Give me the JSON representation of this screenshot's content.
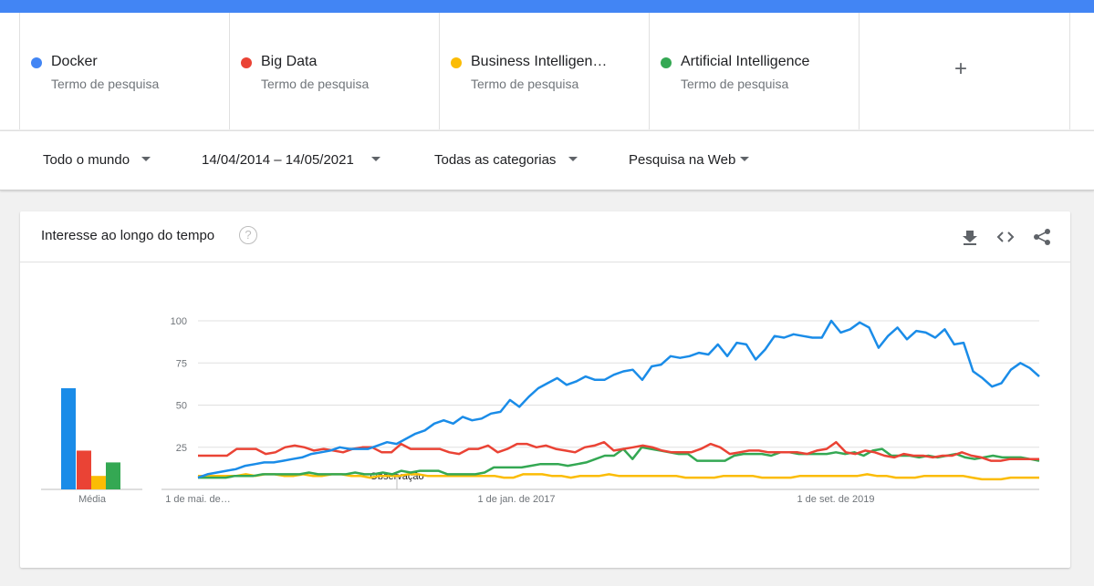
{
  "terms": [
    {
      "name": "Docker",
      "subtitle": "Termo de pesquisa",
      "color": "#4285f4"
    },
    {
      "name": "Big Data",
      "subtitle": "Termo de pesquisa",
      "color": "#ea4335"
    },
    {
      "name": "Business Intelligen…",
      "subtitle": "Termo de pesquisa",
      "color": "#fbbc04"
    },
    {
      "name": "Artificial Intelligence",
      "subtitle": "Termo de pesquisa",
      "color": "#34a853"
    }
  ],
  "add_term": {
    "label": "+",
    "icon": "plus-icon"
  },
  "filters": {
    "region": "Todo o mundo",
    "date_range": "14/04/2014 – 14/05/2021",
    "category": "Todas as categorias",
    "search_type": "Pesquisa na Web"
  },
  "card": {
    "title": "Interesse ao longo do tempo",
    "help_icon": "question-icon",
    "actions": [
      "download-icon",
      "embed-icon",
      "share-icon"
    ]
  },
  "chart_data": {
    "type": "line",
    "ylim": [
      0,
      100
    ],
    "y_ticks": [
      "100",
      "75",
      "50",
      "25"
    ],
    "x_tick_labels": [
      "1 de mai. de…",
      "1 de jan. de 2017",
      "1 de set. de 2019"
    ],
    "annotation": "Observação",
    "average_label": "Média",
    "averages": [
      {
        "name": "Docker",
        "value": 60,
        "color": "#1a8ce8"
      },
      {
        "name": "Big Data",
        "value": 23,
        "color": "#ea4335"
      },
      {
        "name": "Business Intelligen…",
        "value": 8,
        "color": "#fbbc04"
      },
      {
        "name": "Artificial Intelligence",
        "value": 16,
        "color": "#34a853"
      }
    ],
    "series": [
      {
        "name": "Docker",
        "color": "#1a8ce8",
        "values": [
          7,
          9,
          10,
          11,
          12,
          14,
          15,
          16,
          16,
          17,
          18,
          19,
          21,
          22,
          23,
          25,
          24,
          24,
          24,
          26,
          28,
          27,
          30,
          33,
          35,
          39,
          41,
          39,
          43,
          41,
          42,
          45,
          46,
          53,
          49,
          55,
          60,
          63,
          66,
          62,
          64,
          67,
          65,
          65,
          68,
          70,
          71,
          65,
          73,
          74,
          79,
          78,
          79,
          81,
          80,
          86,
          79,
          87,
          86,
          77,
          83,
          91,
          90,
          92,
          91,
          90,
          90,
          100,
          93,
          95,
          99,
          96,
          84,
          91,
          96,
          89,
          94,
          93,
          90,
          95,
          86,
          87,
          70,
          66,
          61,
          63,
          71,
          75,
          72,
          67
        ]
      },
      {
        "name": "Big Data",
        "color": "#ea4335",
        "values": [
          20,
          20,
          20,
          20,
          24,
          24,
          24,
          21,
          22,
          25,
          26,
          25,
          23,
          24,
          23,
          22,
          24,
          25,
          25,
          22,
          22,
          27,
          24,
          24,
          24,
          24,
          22,
          21,
          24,
          24,
          26,
          22,
          24,
          27,
          27,
          25,
          26,
          24,
          23,
          22,
          25,
          26,
          28,
          23,
          24,
          25,
          26,
          25,
          23,
          22,
          22,
          22,
          24,
          27,
          25,
          21,
          22,
          23,
          23,
          22,
          22,
          22,
          22,
          21,
          23,
          24,
          28,
          22,
          21,
          23,
          22,
          20,
          19,
          21,
          20,
          20,
          19,
          20,
          20,
          22,
          20,
          19,
          17,
          17,
          18,
          18,
          18,
          18
        ]
      },
      {
        "name": "Business Intelligen…",
        "color": "#fbbc04",
        "values": [
          8,
          8,
          8,
          8,
          8,
          9,
          8,
          9,
          9,
          8,
          8,
          9,
          8,
          8,
          9,
          9,
          8,
          8,
          7,
          8,
          8,
          8,
          9,
          9,
          8,
          8,
          8,
          8,
          8,
          8,
          8,
          8,
          7,
          7,
          9,
          9,
          9,
          8,
          8,
          7,
          8,
          8,
          8,
          9,
          8,
          8,
          8,
          8,
          8,
          8,
          8,
          7,
          7,
          7,
          7,
          8,
          8,
          8,
          8,
          7,
          7,
          7,
          7,
          8,
          8,
          8,
          8,
          8,
          8,
          8,
          9,
          8,
          8,
          7,
          7,
          7,
          8,
          8,
          8,
          8,
          8,
          7,
          6,
          6,
          6,
          7,
          7,
          7,
          7
        ]
      },
      {
        "name": "Artificial Intelligence",
        "color": "#34a853",
        "values": [
          7,
          7,
          7,
          7,
          8,
          8,
          8,
          9,
          9,
          9,
          9,
          9,
          10,
          9,
          9,
          9,
          9,
          10,
          9,
          9,
          10,
          9,
          11,
          10,
          11,
          11,
          11,
          9,
          9,
          9,
          9,
          10,
          13,
          13,
          13,
          13,
          14,
          15,
          15,
          15,
          14,
          15,
          16,
          18,
          20,
          20,
          24,
          18,
          25,
          24,
          23,
          22,
          21,
          21,
          17,
          17,
          17,
          17,
          20,
          21,
          21,
          21,
          20,
          22,
          22,
          21,
          21,
          21,
          21,
          22,
          21,
          22,
          20,
          23,
          24,
          20,
          20,
          20,
          19,
          20,
          19,
          20,
          21,
          19,
          18,
          19,
          20,
          19,
          19,
          19,
          18,
          17
        ]
      }
    ]
  }
}
